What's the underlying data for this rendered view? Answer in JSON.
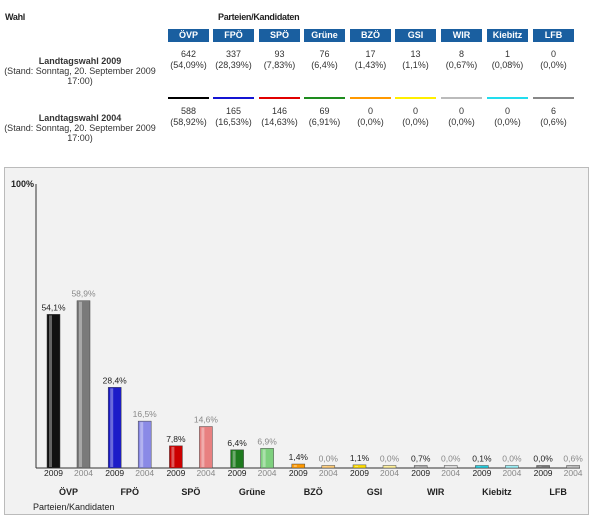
{
  "table": {
    "wahl_header": "Wahl",
    "parties_header": "Parteien/Kandidaten",
    "parties": [
      {
        "name": "ÖVP",
        "color": "#000000"
      },
      {
        "name": "FPÖ",
        "color": "#1414d2"
      },
      {
        "name": "SPÖ",
        "color": "#e10000"
      },
      {
        "name": "Grüne",
        "color": "#1e8c1e"
      },
      {
        "name": "BZÖ",
        "color": "#ff9900"
      },
      {
        "name": "GSI",
        "color": "#ffee00"
      },
      {
        "name": "WIR",
        "color": "#bbbbbb"
      },
      {
        "name": "Kiebitz",
        "color": "#22ddee"
      },
      {
        "name": "LFB",
        "color": "#888888"
      }
    ],
    "rows": [
      {
        "title": "Landtagswahl 2009",
        "stand": "(Stand: Sonntag, 20. September 2009 17:00)",
        "values": [
          {
            "votes": "642",
            "pct": "(54,09%)"
          },
          {
            "votes": "337",
            "pct": "(28,39%)"
          },
          {
            "votes": "93",
            "pct": "(7,83%)"
          },
          {
            "votes": "76",
            "pct": "(6,4%)"
          },
          {
            "votes": "17",
            "pct": "(1,43%)"
          },
          {
            "votes": "13",
            "pct": "(1,1%)"
          },
          {
            "votes": "8",
            "pct": "(0,67%)"
          },
          {
            "votes": "1",
            "pct": "(0,08%)"
          },
          {
            "votes": "0",
            "pct": "(0,0%)"
          }
        ]
      },
      {
        "title": "Landtagswahl 2004",
        "stand": "(Stand: Sonntag, 20. September 2009 17:00)",
        "values": [
          {
            "votes": "588",
            "pct": "(58,92%)"
          },
          {
            "votes": "165",
            "pct": "(16,53%)"
          },
          {
            "votes": "146",
            "pct": "(14,63%)"
          },
          {
            "votes": "69",
            "pct": "(6,91%)"
          },
          {
            "votes": "0",
            "pct": "(0,0%)"
          },
          {
            "votes": "0",
            "pct": "(0,0%)"
          },
          {
            "votes": "0",
            "pct": "(0,0%)"
          },
          {
            "votes": "0",
            "pct": "(0,0%)"
          },
          {
            "votes": "6",
            "pct": "(0,6%)"
          }
        ]
      }
    ]
  },
  "chart_data": {
    "type": "bar",
    "ymax_label": "100%",
    "xlabel": "Parteien/Kandidaten",
    "ylim": [
      0,
      100
    ],
    "categories": [
      "ÖVP",
      "FPÖ",
      "SPÖ",
      "Grüne",
      "BZÖ",
      "GSI",
      "WIR",
      "Kiebitz",
      "LFB"
    ],
    "series": [
      {
        "name": "2009",
        "values": [
          54.1,
          28.4,
          7.8,
          6.4,
          1.4,
          1.1,
          0.7,
          0.1,
          0.0
        ],
        "labels": [
          "54,1%",
          "28,4%",
          "7,8%",
          "6,4%",
          "1,4%",
          "1,1%",
          "0,7%",
          "0,1%",
          "0,0%"
        ],
        "colors": [
          "#111111",
          "#1c1cc8",
          "#cc0000",
          "#1e7a1e",
          "#ff9900",
          "#ffdd00",
          "#aaaaaa",
          "#22ccdd",
          "#777777"
        ]
      },
      {
        "name": "2004",
        "values": [
          58.9,
          16.5,
          14.6,
          6.9,
          0.0,
          0.0,
          0.0,
          0.0,
          0.6
        ],
        "labels": [
          "58,9%",
          "16,5%",
          "14,6%",
          "6,9%",
          "0,0%",
          "0,0%",
          "0,0%",
          "0,0%",
          "0,6%"
        ],
        "colors": [
          "#7a7a7a",
          "#8a8ae6",
          "#e88080",
          "#7ed07e",
          "#ffcc77",
          "#fff099",
          "#dddddd",
          "#99eef5",
          "#bbbbbb"
        ]
      }
    ]
  }
}
